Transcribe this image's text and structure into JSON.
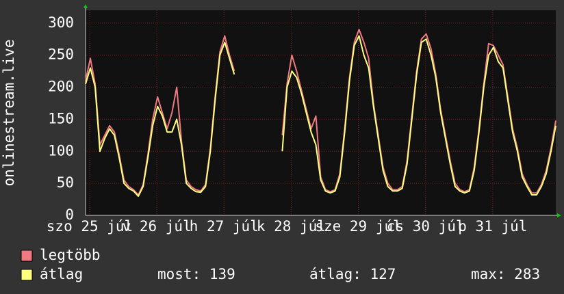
{
  "chart_data": {
    "type": "line",
    "y_label": "onlinestream.live",
    "x_labels": [
      "szo 25 júl",
      "v 26 júl",
      "h 27 júl",
      "k 28 júl",
      "sze 29 júl",
      "cs 30 júl",
      "p 31 júl"
    ],
    "ylim": [
      0,
      320
    ],
    "yticks": [
      0,
      50,
      100,
      150,
      200,
      250,
      300
    ],
    "grid": true,
    "series": [
      {
        "name": "legtöbb",
        "color": "#f07a82",
        "values": [
          210,
          245,
          205,
          110,
          125,
          140,
          130,
          95,
          55,
          45,
          40,
          32,
          48,
          95,
          150,
          185,
          160,
          135,
          160,
          200,
          115,
          55,
          45,
          40,
          38,
          48,
          105,
          185,
          255,
          280,
          250,
          225,
          null,
          null,
          null,
          null,
          null,
          null,
          null,
          null,
          null,
          125,
          205,
          250,
          225,
          195,
          165,
          135,
          155,
          60,
          40,
          37,
          40,
          65,
          135,
          215,
          270,
          290,
          270,
          245,
          175,
          125,
          75,
          50,
          40,
          40,
          45,
          85,
          155,
          225,
          275,
          283,
          260,
          220,
          165,
          125,
          85,
          50,
          40,
          37,
          40,
          75,
          135,
          205,
          268,
          265,
          250,
          235,
          185,
          135,
          105,
          65,
          48,
          35,
          35,
          48,
          70,
          105,
          148
        ]
      },
      {
        "name": "átlag",
        "color": "#ffff80",
        "values": [
          205,
          230,
          200,
          100,
          120,
          135,
          125,
          90,
          50,
          42,
          38,
          30,
          45,
          90,
          140,
          170,
          155,
          130,
          130,
          150,
          110,
          50,
          42,
          37,
          36,
          45,
          100,
          180,
          250,
          270,
          245,
          220,
          null,
          null,
          null,
          null,
          null,
          null,
          null,
          null,
          null,
          100,
          200,
          225,
          215,
          190,
          160,
          130,
          110,
          55,
          38,
          35,
          38,
          60,
          130,
          210,
          265,
          280,
          250,
          230,
          170,
          120,
          70,
          45,
          38,
          38,
          42,
          80,
          150,
          220,
          270,
          275,
          250,
          215,
          160,
          120,
          80,
          45,
          38,
          35,
          38,
          70,
          130,
          200,
          250,
          262,
          240,
          230,
          180,
          130,
          100,
          60,
          45,
          32,
          32,
          45,
          65,
          100,
          140
        ]
      }
    ],
    "stats": [
      {
        "label": "most:",
        "value": 139
      },
      {
        "label": "átlag:",
        "value": 127
      },
      {
        "label": "max:",
        "value": 283
      }
    ]
  }
}
